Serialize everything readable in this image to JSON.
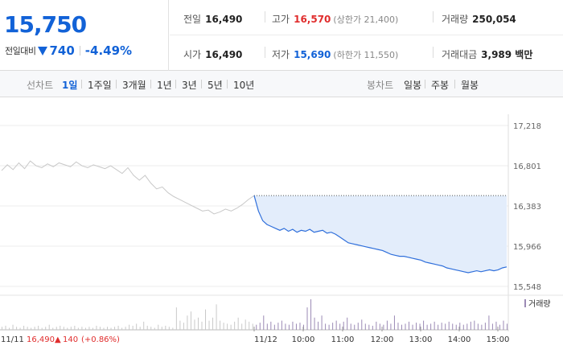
{
  "price": {
    "current": "15,750",
    "change_label": "전일대비",
    "change_amount": "740",
    "change_percent": "-4.49%",
    "color": "#1262d7"
  },
  "stats": {
    "prev_close": {
      "label": "전일",
      "value": "16,490"
    },
    "high": {
      "label": "고가",
      "value": "16,570",
      "sub": "(상한가 21,400)",
      "color": "#e02d2d"
    },
    "volume": {
      "label": "거래량",
      "value": "250,054"
    },
    "open": {
      "label": "시가",
      "value": "16,490"
    },
    "low": {
      "label": "저가",
      "value": "15,690",
      "sub": "(하한가 11,550)",
      "color": "#1262d7"
    },
    "amount": {
      "label": "거래대금",
      "value": "3,989 백만"
    }
  },
  "tabs": {
    "line_label": "선차트",
    "line_items": [
      "1일",
      "1주일",
      "3개월",
      "1년",
      "3년",
      "5년",
      "10년"
    ],
    "line_active": "1일",
    "candle_label": "봉차트",
    "candle_items": [
      "일봉",
      "주봉",
      "월봉"
    ]
  },
  "footer": {
    "prev_date": "11/11",
    "prev_close": "16,490",
    "prev_change": "140",
    "prev_change_pct": "(+0.86%)",
    "cur_date": "11/12"
  },
  "chart_data": {
    "type": "line",
    "y_ticks": [
      "17,218",
      "16,801",
      "16,383",
      "15,966",
      "15,548"
    ],
    "y_tick_values": [
      17218,
      16801,
      16383,
      15966,
      15548
    ],
    "ylim": [
      15548,
      17218
    ],
    "x_ticks": [
      "10:00",
      "11:00",
      "12:00",
      "13:00",
      "14:00",
      "15:00"
    ],
    "reference_line": 16490,
    "volume_legend": "거래량",
    "colors": {
      "prev_day": "#c8c8c8",
      "today": "#2f6fdb",
      "fill": "#e3edfb",
      "volume": "#9b8ab5"
    },
    "series": [
      {
        "values": [
          16750,
          16810,
          16760,
          16830,
          16770,
          16850,
          16800,
          16780,
          16820,
          16790,
          16830,
          16810,
          16790,
          16840,
          16800,
          16780,
          16810,
          16790,
          16770,
          16800,
          16760,
          16720,
          16780,
          16700,
          16650,
          16700,
          16620,
          16560,
          16580,
          16520,
          16480,
          16450,
          16420,
          16390,
          16360,
          16330,
          16340,
          16300,
          16320,
          16350,
          16330,
          16360,
          16400,
          16450,
          16490
        ]
      },
      {
        "values": [
          16490,
          16330,
          16230,
          16190,
          16170,
          16150,
          16130,
          16150,
          16120,
          16140,
          16110,
          16130,
          16120,
          16140,
          16110,
          16120,
          16130,
          16100,
          16110,
          16090,
          16060,
          16030,
          16000,
          15990,
          15980,
          15970,
          15960,
          15950,
          15940,
          15930,
          15920,
          15900,
          15880,
          15870,
          15860,
          15860,
          15850,
          15840,
          15830,
          15820,
          15800,
          15790,
          15780,
          15770,
          15760,
          15740,
          15730,
          15720,
          15710,
          15700,
          15690,
          15700,
          15710,
          15700,
          15710,
          15720,
          15710,
          15720,
          15740,
          15750
        ]
      }
    ],
    "volume": [
      3,
      4,
      2,
      5,
      3,
      2,
      4,
      3,
      2,
      3,
      4,
      2,
      3,
      5,
      2,
      3,
      4,
      3,
      2,
      3,
      4,
      2,
      3,
      2,
      3,
      2,
      4,
      3,
      2,
      3,
      2,
      3,
      4,
      2,
      3,
      5,
      4,
      6,
      3,
      8,
      4,
      3,
      2,
      5,
      3,
      4,
      3,
      2,
      22,
      9,
      7,
      14,
      18,
      10,
      12,
      8,
      20,
      9,
      12,
      25,
      9,
      7,
      6,
      5,
      8,
      12,
      6,
      10,
      8,
      6,
      5,
      7,
      14,
      6,
      8,
      5,
      7,
      9,
      6,
      5,
      8,
      6,
      7,
      5,
      22,
      30,
      12,
      8,
      14,
      6,
      5,
      7,
      9,
      6,
      8,
      12,
      6,
      5,
      7,
      10,
      6,
      5,
      4,
      8,
      6,
      5,
      9,
      6,
      14,
      7,
      5,
      6,
      8,
      5,
      7,
      6,
      9,
      5,
      6,
      8,
      5,
      7,
      6,
      8,
      6,
      5,
      7,
      5,
      6,
      8,
      9,
      6,
      5,
      7,
      14,
      6,
      8,
      5,
      9,
      6
    ]
  }
}
